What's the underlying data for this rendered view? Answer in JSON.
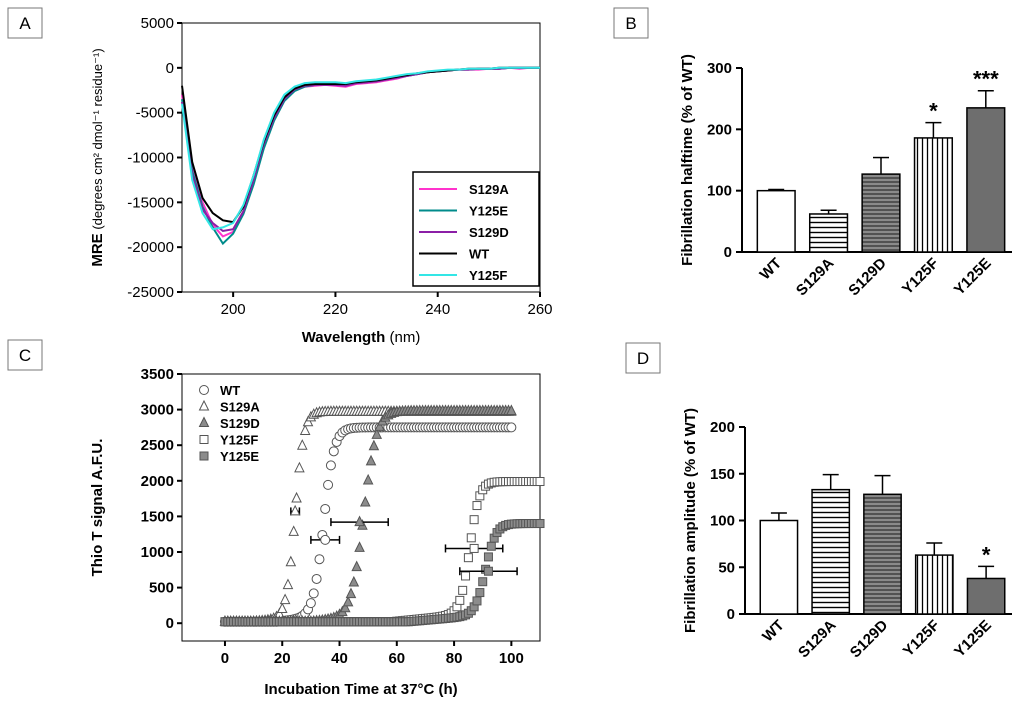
{
  "panels": {
    "A": "A",
    "B": "B",
    "C": "C",
    "D": "D"
  },
  "chart_data": [
    {
      "panel": "A",
      "type": "line",
      "xlabel_bold": "Wavelength",
      "xlabel_unit": "(nm)",
      "ylabel_bold": "MRE",
      "ylabel_unit": "(degrees cm² dmol⁻¹ residue⁻¹)",
      "xlim": [
        190,
        260
      ],
      "ylim": [
        -25000,
        5000
      ],
      "xticks": [
        200,
        220,
        240,
        260
      ],
      "yticks": [
        5000,
        0,
        -5000,
        -10000,
        -15000,
        -20000,
        -25000
      ],
      "x": [
        190,
        192,
        194,
        196,
        198,
        200,
        202,
        204,
        206,
        208,
        210,
        212,
        214,
        216,
        218,
        220,
        222,
        224,
        226,
        228,
        230,
        232,
        234,
        236,
        238,
        240,
        242,
        244,
        246,
        248,
        250,
        252,
        254,
        256,
        258,
        260
      ],
      "series": [
        {
          "name": "S129A",
          "color": "#ff33cc",
          "values": [
            -3000,
            -11000,
            -15000,
            -17500,
            -18800,
            -18300,
            -16200,
            -12700,
            -8700,
            -5700,
            -3500,
            -2500,
            -2100,
            -2000,
            -1900,
            -2000,
            -2100,
            -1800,
            -1700,
            -1600,
            -1400,
            -1200,
            -900,
            -700,
            -500,
            -400,
            -300,
            -200,
            -200,
            -200,
            -100,
            -100,
            0,
            -100,
            0,
            0
          ]
        },
        {
          "name": "Y125E",
          "color": "#008b8b",
          "values": [
            -3500,
            -11500,
            -15500,
            -17800,
            -19600,
            -18500,
            -16300,
            -13000,
            -9000,
            -5900,
            -3700,
            -2600,
            -2100,
            -1900,
            -1800,
            -1800,
            -1900,
            -1700,
            -1600,
            -1500,
            -1300,
            -1100,
            -900,
            -700,
            -500,
            -400,
            -300,
            -200,
            -200,
            -100,
            -100,
            -100,
            0,
            0,
            0,
            0
          ]
        },
        {
          "name": "S129D",
          "color": "#8b1fa6",
          "values": [
            -3800,
            -12000,
            -15800,
            -17300,
            -18200,
            -18000,
            -16000,
            -12500,
            -8500,
            -5600,
            -3500,
            -2400,
            -2000,
            -1900,
            -1900,
            -1900,
            -2000,
            -1700,
            -1600,
            -1500,
            -1300,
            -1100,
            -900,
            -700,
            -500,
            -400,
            -300,
            -200,
            -200,
            -100,
            -100,
            -100,
            0,
            0,
            0,
            0
          ]
        },
        {
          "name": "WT",
          "color": "#000000",
          "values": [
            -2000,
            -10500,
            -14500,
            -16200,
            -17000,
            -17200,
            -15500,
            -12000,
            -8200,
            -5300,
            -3300,
            -2300,
            -1900,
            -1800,
            -1800,
            -1800,
            -1800,
            -1600,
            -1500,
            -1400,
            -1200,
            -1000,
            -800,
            -600,
            -500,
            -400,
            -300,
            -200,
            -100,
            -100,
            -100,
            0,
            0,
            0,
            0,
            0
          ]
        },
        {
          "name": "Y125F",
          "color": "#33e6e6",
          "values": [
            -4000,
            -12500,
            -16200,
            -18000,
            -17800,
            -17300,
            -15300,
            -12000,
            -8000,
            -5000,
            -3000,
            -2100,
            -1700,
            -1600,
            -1600,
            -1600,
            -1700,
            -1500,
            -1400,
            -1300,
            -1100,
            -900,
            -700,
            -600,
            -400,
            -300,
            -200,
            -200,
            -100,
            -100,
            -100,
            0,
            0,
            0,
            0,
            0
          ]
        }
      ],
      "legend_position": "bottom-right"
    },
    {
      "panel": "B",
      "type": "bar",
      "ylabel": "Fibrillation halftime (% of WT)",
      "ylim": [
        0,
        300
      ],
      "yticks": [
        0,
        100,
        200,
        300
      ],
      "categories": [
        "WT",
        "S129A",
        "S129D",
        "Y125F",
        "Y125E"
      ],
      "values": [
        100,
        62,
        127,
        186,
        235
      ],
      "errors": [
        2,
        6,
        27,
        25,
        28
      ],
      "fills": [
        "white",
        "hstripe",
        "darkhstripe",
        "vstripe",
        "darkgray"
      ],
      "significance": [
        "",
        "",
        "",
        "*",
        "***"
      ]
    },
    {
      "panel": "C",
      "type": "scatter",
      "xlabel": "Incubation Time at 37°C (h)",
      "ylabel": "Thio T signal A.F.U.",
      "xlim": [
        -15,
        110
      ],
      "ylim": [
        -250,
        3500
      ],
      "xticks": [
        0,
        20,
        40,
        60,
        80,
        100
      ],
      "yticks": [
        0,
        500,
        1000,
        1500,
        2000,
        2500,
        3000,
        3500
      ],
      "series": [
        {
          "name": "WT",
          "marker": "circle-open",
          "kinetics": {
            "baseline": 20,
            "plateau": 2730,
            "t_half": 34.5,
            "k": 0.55,
            "lag_slope": 4.5,
            "lag_start": 18,
            "t_end": 100,
            "step": 1
          },
          "halftime_marker": {
            "x": 35,
            "y": 1170,
            "xerr": 5
          }
        },
        {
          "name": "S129A",
          "marker": "triangle-open",
          "kinetics": {
            "baseline": 20,
            "plateau": 2950,
            "t_half": 24.5,
            "k": 0.65,
            "lag_slope": 3,
            "lag_start": 10,
            "t_end": 100,
            "step": 1
          },
          "halftime_marker": {
            "x": 24.5,
            "y": 1570,
            "xerr": 1.5
          }
        },
        {
          "name": "S129D",
          "marker": "triangle-filled",
          "kinetics": {
            "baseline": 20,
            "plateau": 2960,
            "t_half": 48.5,
            "k": 0.45,
            "lag_slope": 3.5,
            "lag_start": 30,
            "t_end": 100,
            "step": 1
          },
          "halftime_marker": {
            "x": 47,
            "y": 1420,
            "xerr": 10
          }
        },
        {
          "name": "Y125F",
          "marker": "square-open",
          "kinetics": {
            "baseline": 20,
            "plateau": 1970,
            "t_half": 85.5,
            "k": 0.6,
            "lag_slope": 4,
            "lag_start": 58,
            "t_end": 110,
            "step": 1
          },
          "halftime_marker": {
            "x": 87,
            "y": 1050,
            "xerr": 10
          }
        },
        {
          "name": "Y125E",
          "marker": "square-filled",
          "kinetics": {
            "baseline": 20,
            "plateau": 1380,
            "t_half": 91,
            "k": 0.55,
            "lag_slope": 3.5,
            "lag_start": 64,
            "t_end": 110,
            "step": 1
          },
          "halftime_marker": {
            "x": 92,
            "y": 730,
            "xerr": 10
          }
        }
      ],
      "legend_position": "top-left"
    },
    {
      "panel": "D",
      "type": "bar",
      "ylabel": "Fibrillation amplitude (% of WT)",
      "ylim": [
        0,
        200
      ],
      "yticks": [
        0,
        50,
        100,
        150,
        200
      ],
      "categories": [
        "WT",
        "S129A",
        "S129D",
        "Y125F",
        "Y125E"
      ],
      "values": [
        100,
        133,
        128,
        63,
        38
      ],
      "errors": [
        8,
        16,
        20,
        13,
        13
      ],
      "fills": [
        "white",
        "hstripe",
        "darkhstripe",
        "vstripe",
        "darkgray"
      ],
      "significance": [
        "",
        "",
        "",
        "",
        "*"
      ]
    }
  ]
}
